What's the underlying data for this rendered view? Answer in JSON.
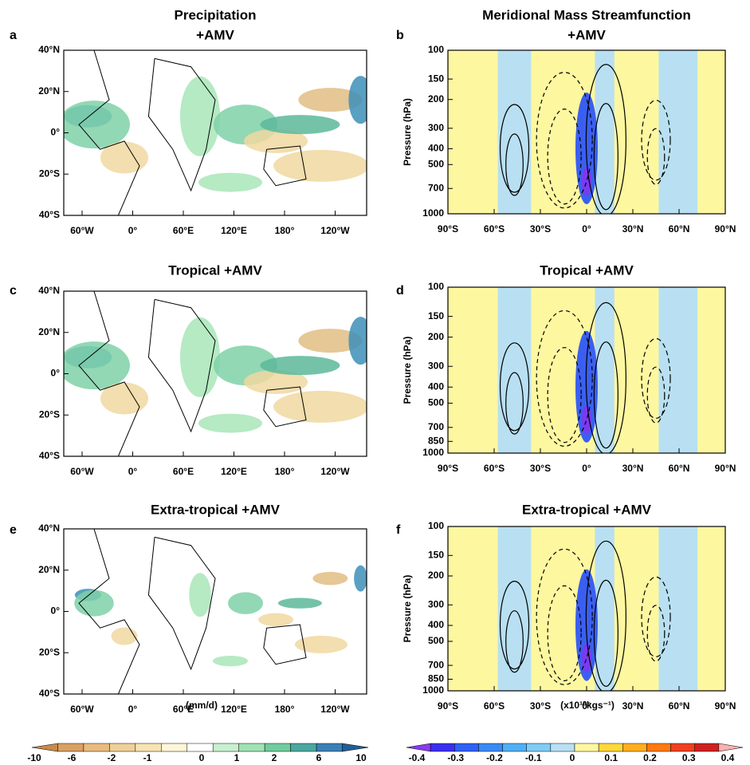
{
  "panels": [
    {
      "letter": "a",
      "title": [
        "Precipitation",
        "+AMV"
      ],
      "xticks": [
        "60°W",
        "0°",
        "60°E",
        "120°E",
        "180°",
        "120°W"
      ],
      "yticks": [
        "40°N",
        "20°N",
        "0°",
        "20°S",
        "40°S"
      ]
    },
    {
      "letter": "b",
      "title": [
        "Meridional Mass Streamfunction",
        "+AMV"
      ],
      "ylabel": "Pressure (hPa)",
      "xticks": [
        "90°S",
        "60°S",
        "30°S",
        "0°",
        "30°N",
        "60°N",
        "90°N"
      ],
      "yticks": [
        "100",
        "150",
        "200",
        "300",
        "400",
        "500",
        "700",
        "1000"
      ]
    },
    {
      "letter": "c",
      "title": [
        "Tropical +AMV"
      ],
      "xticks": [
        "60°W",
        "0°",
        "60°E",
        "120°E",
        "180°",
        "120°W"
      ],
      "yticks": [
        "40°N",
        "20°N",
        "0°",
        "20°S",
        "40°S"
      ]
    },
    {
      "letter": "d",
      "title": [
        "Tropical +AMV"
      ],
      "ylabel": "Pressure (hPa)",
      "xticks": [
        "90°S",
        "60°S",
        "30°S",
        "0°",
        "30°N",
        "60°N",
        "90°N"
      ],
      "yticks": [
        "100",
        "150",
        "200",
        "300",
        "400",
        "500",
        "700",
        "850",
        "1000"
      ]
    },
    {
      "letter": "e",
      "title": [
        "Extra-tropical +AMV"
      ],
      "xticks": [
        "60°W",
        "0°",
        "60°E",
        "120°E",
        "180°",
        "120°W"
      ],
      "yticks": [
        "40°N",
        "20°N",
        "0°",
        "20°S",
        "40°S"
      ]
    },
    {
      "letter": "f",
      "title": [
        "Extra-tropical +AMV"
      ],
      "ylabel": "Pressure (hPa)",
      "xticks": [
        "90°S",
        "60°S",
        "30°S",
        "0°",
        "30°N",
        "60°N",
        "90°N"
      ],
      "yticks": [
        "100",
        "150",
        "200",
        "300",
        "400",
        "500",
        "700",
        "850",
        "1000"
      ]
    }
  ],
  "colorbars": [
    {
      "unit": "(mm/d)",
      "labels": [
        "-10",
        "-6",
        "-2",
        "-1",
        "0",
        "1",
        "2",
        "6",
        "10"
      ]
    },
    {
      "unit": "(x10¹⁰kgs⁻¹)",
      "labels": [
        "-0.4",
        "-0.3",
        "-0.2",
        "-0.1",
        "0",
        "0.1",
        "0.2",
        "0.3",
        "0.4"
      ]
    }
  ]
}
